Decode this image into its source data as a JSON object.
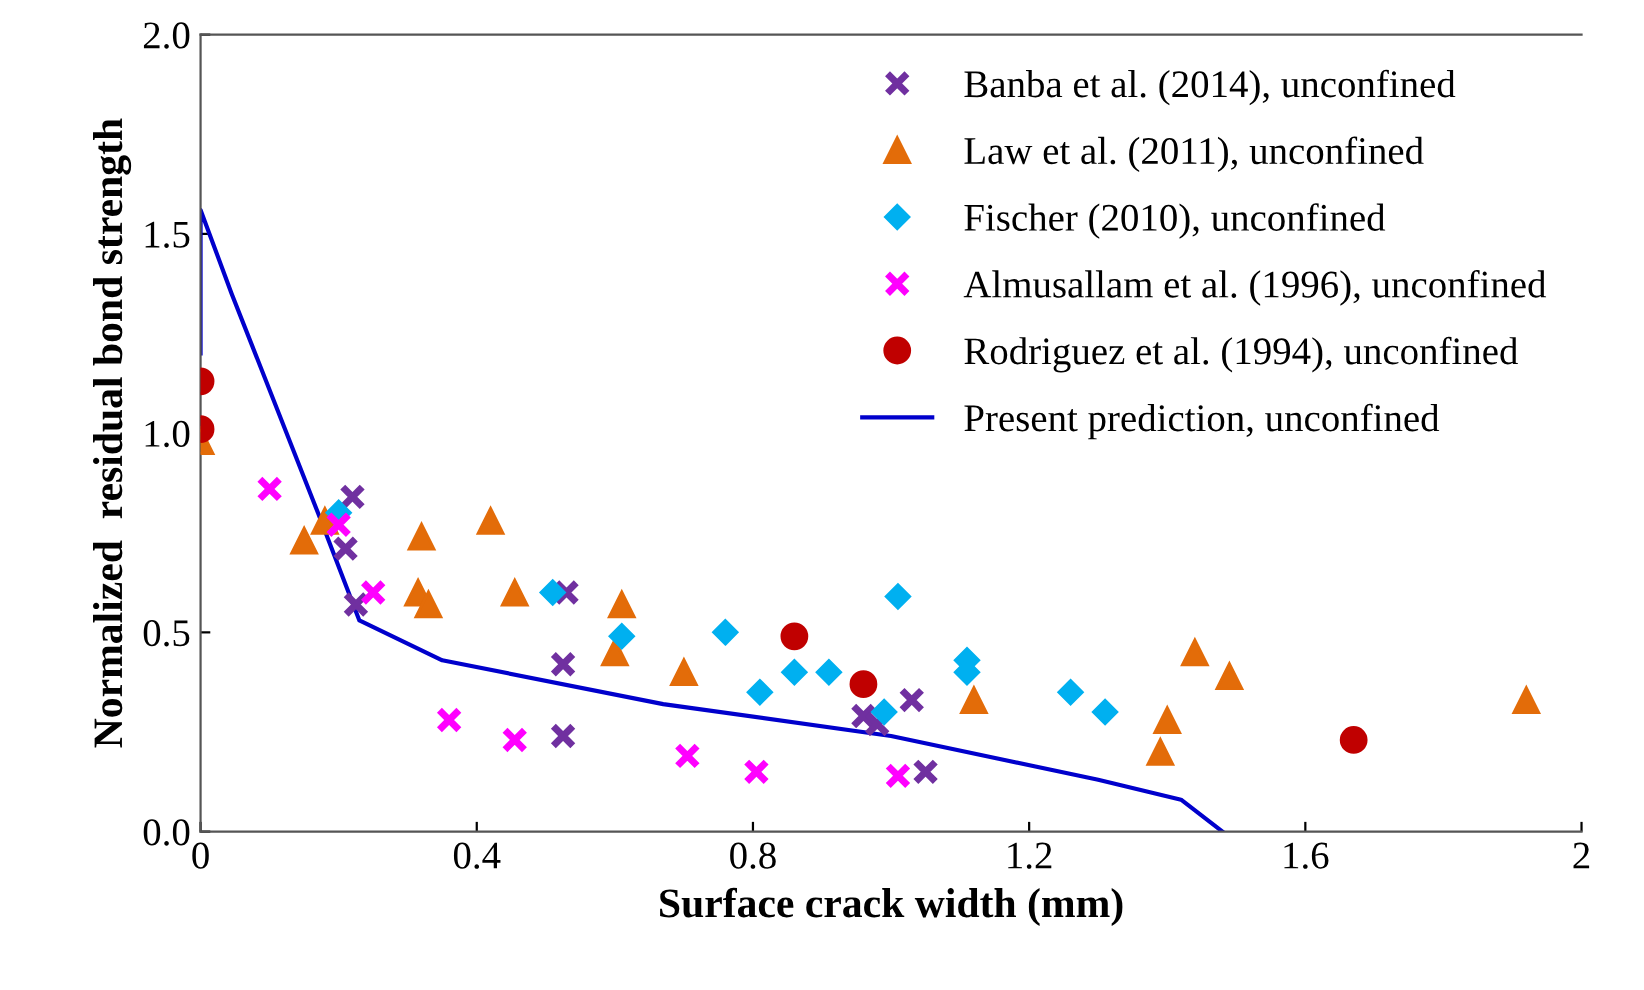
{
  "chart_data": {
    "type": "scatter",
    "xlabel": "Surface crack width (mm)",
    "ylabel": "Normalized  residual bond strength",
    "xlim": [
      0,
      2
    ],
    "ylim": [
      0,
      2
    ],
    "xticks": [
      0,
      0.4,
      0.8,
      1.2,
      1.6,
      2
    ],
    "yticks": [
      {
        "value": 0,
        "label": "0.0"
      },
      0.5,
      {
        "value": 1,
        "label": "1.0"
      },
      1.5,
      {
        "value": 2,
        "label": "2.0"
      }
    ],
    "grid": false,
    "legend": "top right",
    "series": [
      {
        "name": "Banba et al. (2014), unconfined",
        "color": "#7030a0",
        "marker": "cross",
        "x": [
          0.22,
          0.21,
          0.225,
          0.53,
          0.525,
          0.525,
          0.96,
          0.98,
          1.03,
          1.05
        ],
        "values": [
          0.84,
          0.71,
          0.57,
          0.6,
          0.42,
          0.24,
          0.29,
          0.27,
          0.33,
          0.15
        ]
      },
      {
        "name": "Law et al. (2011), unconfined",
        "color": "#e36c09",
        "marker": "triangle",
        "x": [
          0,
          0.15,
          0.18,
          0.32,
          0.315,
          0.33,
          0.42,
          0.455,
          0.61,
          0.6,
          0.7,
          1.12,
          1.44,
          1.49,
          1.4,
          1.39,
          1.92
        ],
        "values": [
          0.98,
          0.73,
          0.78,
          0.74,
          0.6,
          0.57,
          0.78,
          0.6,
          0.57,
          0.45,
          0.4,
          0.33,
          0.45,
          0.39,
          0.28,
          0.2,
          0.33
        ]
      },
      {
        "name": "Fischer (2010), unconfined",
        "color": "#00b0f0",
        "marker": "diamond",
        "x": [
          0.2,
          0.51,
          0.61,
          0.76,
          0.81,
          0.86,
          0.91,
          1.01,
          0.99,
          1.11,
          1.11,
          1.26,
          1.31
        ],
        "values": [
          0.8,
          0.6,
          0.49,
          0.5,
          0.35,
          0.4,
          0.4,
          0.59,
          0.3,
          0.43,
          0.4,
          0.35,
          0.3
        ]
      },
      {
        "name": "Almusallam et al. (1996), unconfined",
        "color": "#ff00ff",
        "marker": "cross",
        "x": [
          0.1,
          0.2,
          0.25,
          0.36,
          0.455,
          0.705,
          0.805,
          1.01
        ],
        "values": [
          0.86,
          0.77,
          0.6,
          0.28,
          0.23,
          0.19,
          0.15,
          0.14
        ]
      },
      {
        "name": "Rodriguez et al. (1994), unconfined",
        "color": "#c00000",
        "marker": "circle",
        "x": [
          0,
          0,
          0.86,
          0.96,
          1.67
        ],
        "values": [
          1.13,
          1.01,
          0.49,
          0.37,
          0.23
        ]
      },
      {
        "name": "Present prediction, unconfined",
        "color": "#0000cc",
        "type": "line",
        "marker": "none",
        "line_style": "solid",
        "x": [
          0,
          0,
          0.045,
          0.17,
          0.23,
          0.35,
          0.67,
          1.0,
          1.3,
          1.42,
          1.48
        ],
        "values": [
          1.2,
          1.56,
          1.35,
          0.8,
          0.53,
          0.43,
          0.32,
          0.24,
          0.13,
          0.08,
          0.0
        ]
      }
    ]
  }
}
